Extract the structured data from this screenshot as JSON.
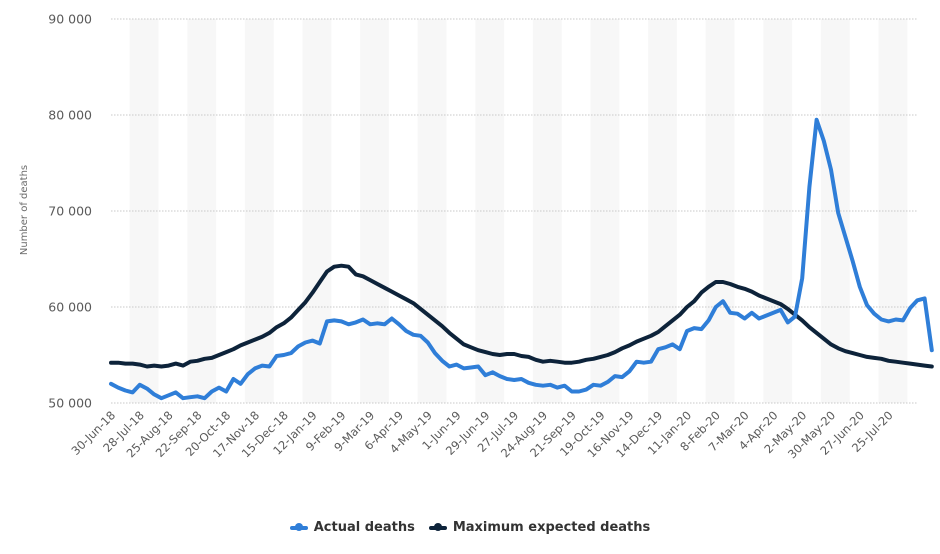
{
  "chart_data": {
    "type": "line",
    "title": "",
    "xlabel": "",
    "ylabel": "Number of deaths",
    "ylim": [
      50000,
      90000
    ],
    "yticks": [
      50000,
      60000,
      70000,
      80000,
      90000
    ],
    "ytick_labels": [
      "50 000",
      "60 000",
      "70 000",
      "80 000",
      "90 000"
    ],
    "grid": true,
    "legend_position": "bottom-center",
    "x_tick_labels": [
      "30-Jun-18",
      "28-Jul-18",
      "25-Aug-18",
      "22-Sep-18",
      "20-Oct-18",
      "17-Nov-18",
      "15-Dec-18",
      "12-Jan-19",
      "9-Feb-19",
      "9-Mar-19",
      "6-Apr-19",
      "4-May-19",
      "1-Jun-19",
      "29-Jun-19",
      "27-Jul-19",
      "24-Aug-19",
      "21-Sep-19",
      "19-Oct-19",
      "16-Nov-19",
      "14-Dec-19",
      "11-Jan-20",
      "8-Feb-20",
      "7-Mar-20",
      "4-Apr-20",
      "2-May-20",
      "30-May-20",
      "27-Jun-20",
      "25-Jul-20"
    ],
    "x_tick_every_n_points": 4,
    "series": [
      {
        "name": "Actual deaths",
        "color": "#2f7ed8",
        "values": [
          52000,
          51600,
          51300,
          51100,
          51900,
          51500,
          50900,
          50500,
          50800,
          51100,
          50500,
          50600,
          50700,
          50500,
          51200,
          51600,
          51200,
          52500,
          52000,
          53000,
          53600,
          53900,
          53800,
          54900,
          55000,
          55200,
          55900,
          56300,
          56500,
          56200,
          58500,
          58600,
          58500,
          58200,
          58400,
          58700,
          58200,
          58300,
          58200,
          58800,
          58200,
          57500,
          57100,
          57000,
          56300,
          55200,
          54400,
          53800,
          54000,
          53600,
          53700,
          53800,
          52900,
          53200,
          52800,
          52500,
          52400,
          52500,
          52100,
          51900,
          51800,
          51900,
          51600,
          51800,
          51200,
          51200,
          51400,
          51900,
          51800,
          52200,
          52800,
          52700,
          53300,
          54300,
          54200,
          54300,
          55600,
          55800,
          56100,
          55600,
          57500,
          57800,
          57700,
          58600,
          60000,
          60600,
          59400,
          59300,
          58800,
          59400,
          58800,
          59100,
          59400,
          59700,
          58400,
          59000,
          63000,
          72500,
          79500,
          77300,
          74300,
          69800,
          67300,
          64800,
          62100,
          60200,
          59300,
          58700,
          58500,
          58700,
          58600,
          59900,
          60700,
          60900,
          55500
        ]
      },
      {
        "name": "Maximum expected deaths",
        "color": "#0d233a",
        "values": [
          54200,
          54200,
          54100,
          54100,
          54000,
          53800,
          53900,
          53800,
          53900,
          54100,
          53900,
          54300,
          54400,
          54600,
          54700,
          55000,
          55300,
          55600,
          56000,
          56300,
          56600,
          56900,
          57300,
          57900,
          58300,
          58900,
          59700,
          60500,
          61500,
          62600,
          63700,
          64200,
          64300,
          64200,
          63400,
          63200,
          62800,
          62400,
          62000,
          61600,
          61200,
          60800,
          60400,
          59800,
          59200,
          58600,
          58000,
          57300,
          56700,
          56100,
          55800,
          55500,
          55300,
          55100,
          55000,
          55100,
          55100,
          54900,
          54800,
          54500,
          54300,
          54400,
          54300,
          54200,
          54200,
          54300,
          54500,
          54600,
          54800,
          55000,
          55300,
          55700,
          56000,
          56400,
          56700,
          57000,
          57400,
          58000,
          58600,
          59200,
          60000,
          60600,
          61500,
          62100,
          62600,
          62600,
          62400,
          62100,
          61900,
          61600,
          61200,
          60900,
          60600,
          60300,
          59800,
          59200,
          58600,
          57900,
          57300,
          56700,
          56100,
          55700,
          55400,
          55200,
          55000,
          54800,
          54700,
          54600,
          54400,
          54300,
          54200,
          54100,
          54000,
          53900,
          53800
        ]
      }
    ]
  },
  "legend": {
    "items": [
      {
        "label": "Actual deaths",
        "color": "#2f7ed8"
      },
      {
        "label": "Maximum expected deaths",
        "color": "#0d233a"
      }
    ]
  }
}
